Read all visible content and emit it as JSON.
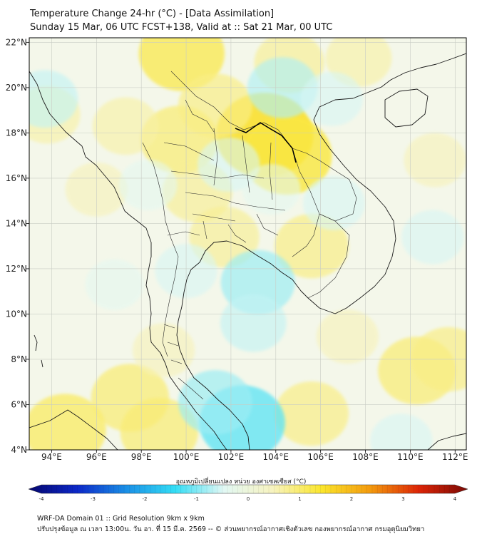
{
  "title_line1": "Temperature Change 24-hr (°C) - [Data Assimilation]",
  "title_line2": "Sunday 15 Mar, 06 UTC FCST+138, Valid at :: Sat 21 Mar, 00 UTC",
  "map": {
    "lon_range": [
      93,
      112.5
    ],
    "lat_range": [
      4,
      22.2
    ],
    "lon_ticks": [
      "94°E",
      "96°E",
      "98°E",
      "100°E",
      "102°E",
      "104°E",
      "106°E",
      "108°E",
      "110°E",
      "112°E"
    ],
    "lon_tick_values": [
      94,
      96,
      98,
      100,
      102,
      104,
      106,
      108,
      110,
      112
    ],
    "lat_ticks": [
      "4°N",
      "6°N",
      "8°N",
      "10°N",
      "12°N",
      "14°N",
      "16°N",
      "18°N",
      "20°N",
      "22°N"
    ],
    "lat_tick_values": [
      4,
      6,
      8,
      10,
      12,
      14,
      16,
      18,
      20,
      22
    ],
    "background_color": "#f4f7ea",
    "warm_anomalies": [
      {
        "lon": 103.5,
        "lat": 17.9,
        "value": 1.4
      },
      {
        "lon": 104.5,
        "lat": 17.0,
        "value": 1.2
      },
      {
        "lon": 99.8,
        "lat": 21.5,
        "value": 1.1
      },
      {
        "lon": 99.7,
        "lat": 17.7,
        "value": 0.9
      },
      {
        "lon": 101.3,
        "lat": 19.2,
        "value": 0.8
      },
      {
        "lon": 100.5,
        "lat": 15.4,
        "value": 0.7
      },
      {
        "lon": 101.7,
        "lat": 13.4,
        "value": 0.7
      },
      {
        "lon": 105.6,
        "lat": 13.0,
        "value": 0.8
      },
      {
        "lon": 97.3,
        "lat": 18.3,
        "value": 0.6
      },
      {
        "lon": 96.0,
        "lat": 15.5,
        "value": 0.5
      },
      {
        "lon": 93.8,
        "lat": 18.8,
        "value": 0.6
      },
      {
        "lon": 94.6,
        "lat": 4.9,
        "value": 1.0
      },
      {
        "lon": 97.5,
        "lat": 6.3,
        "value": 0.9
      },
      {
        "lon": 98.8,
        "lat": 4.8,
        "value": 0.9
      },
      {
        "lon": 105.6,
        "lat": 5.6,
        "value": 0.8
      },
      {
        "lon": 110.3,
        "lat": 7.5,
        "value": 0.9
      },
      {
        "lon": 111.7,
        "lat": 8.0,
        "value": 0.8
      },
      {
        "lon": 107.7,
        "lat": 21.3,
        "value": 0.6
      },
      {
        "lon": 111.1,
        "lat": 16.8,
        "value": 0.5
      },
      {
        "lon": 107.2,
        "lat": 9.0,
        "value": 0.5
      },
      {
        "lon": 99.0,
        "lat": 8.4,
        "value": 0.5
      },
      {
        "lon": 104.6,
        "lat": 21.1,
        "value": 0.7
      }
    ],
    "cool_anomalies": [
      {
        "lon": 102.5,
        "lat": 5.2,
        "value": -1.1
      },
      {
        "lon": 101.3,
        "lat": 6.1,
        "value": -0.8
      },
      {
        "lon": 103.2,
        "lat": 11.4,
        "value": -0.8
      },
      {
        "lon": 103.0,
        "lat": 9.6,
        "value": -0.6
      },
      {
        "lon": 104.3,
        "lat": 20.0,
        "value": -0.7
      },
      {
        "lon": 93.7,
        "lat": 19.5,
        "value": -0.6
      },
      {
        "lon": 106.5,
        "lat": 19.5,
        "value": -0.5
      },
      {
        "lon": 106.6,
        "lat": 14.9,
        "value": -0.5
      },
      {
        "lon": 100.0,
        "lat": 11.9,
        "value": -0.5
      },
      {
        "lon": 111.0,
        "lat": 13.4,
        "value": -0.5
      },
      {
        "lon": 98.3,
        "lat": 15.7,
        "value": -0.4
      },
      {
        "lon": 96.8,
        "lat": 11.3,
        "value": -0.4
      },
      {
        "lon": 101.9,
        "lat": 16.6,
        "value": -0.5
      },
      {
        "lon": 103.8,
        "lat": 15.5,
        "value": -0.4
      },
      {
        "lon": 109.6,
        "lat": 4.4,
        "value": -0.5
      }
    ]
  },
  "colorbar": {
    "title": "อุณหภูมิเปลี่ยนแปลง หน่วย องศาเซลเซียส (°C)",
    "min": -4,
    "max": 4,
    "ticks": [
      "-4",
      "-3",
      "-2",
      "-1",
      "0",
      "1",
      "2",
      "3",
      "4"
    ],
    "tick_values": [
      -4,
      -3,
      -2,
      -1,
      0,
      1,
      2,
      3,
      4
    ],
    "stops": [
      "#05066e",
      "#0c28c8",
      "#1a8fe6",
      "#33ddf5",
      "#e2f8f4",
      "#f7f3c0",
      "#fbe62c",
      "#f39a0d",
      "#dc2406",
      "#7a0a05"
    ]
  },
  "footer_line1": "WRF-DA Domain 01 :: Grid Resolution 9km x 9km",
  "footer_line2": "ปรับปรุงข้อมูล ณ เวลา 13:00น. วัน อา. ที่ 15 มี.ค. 2569 -- © ส่วนพยากรณ์อากาศเชิงตัวเลข กองพยากรณ์อากาศ กรมอุตุนิยมวิทยา"
}
